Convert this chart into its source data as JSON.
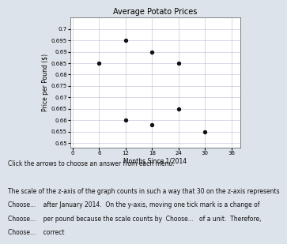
{
  "title": "Average Potato Prices",
  "xlabel": "Months Since 1/2014",
  "ylabel": "Price per Pound ($)",
  "xlim": [
    -0.5,
    38
  ],
  "ylim": [
    0.648,
    0.705
  ],
  "xticks": [
    0,
    6,
    12,
    18,
    24,
    30,
    36
  ],
  "yticks": [
    0.65,
    0.655,
    0.66,
    0.665,
    0.67,
    0.675,
    0.68,
    0.685,
    0.69,
    0.695,
    0.7
  ],
  "ytick_labels": [
    "0.65",
    "0.655",
    "0.66",
    "0.665",
    "0.67",
    "0.675",
    "0.68",
    "0.685",
    "0.69",
    "0.695",
    "0.7"
  ],
  "points_x": [
    6,
    12,
    18,
    24,
    12,
    18,
    24,
    30
  ],
  "points_y": [
    0.685,
    0.695,
    0.69,
    0.685,
    0.66,
    0.658,
    0.665,
    0.655
  ],
  "point_color": "#111111",
  "point_size": 8,
  "background_color": "#dde3ea",
  "plot_bg_color": "#ffffff",
  "grid_color": "#aaaacc",
  "title_fontsize": 7,
  "axis_label_fontsize": 5.5,
  "tick_fontsize": 5,
  "text_lines": [
    "Click the arrows to choose an answer from each menu.",
    "",
    "The scale of the z-axis of the graph counts in such a way that 30 on the z-axis represents",
    "Choose...    after January 2014.  On the y-axis, moving one tick mark is a change of",
    "Choose...    per pound because the scale counts by  Choose...   of a unit.  Therefore,",
    "Choose...    correct"
  ],
  "text_fontsize": 5.5
}
